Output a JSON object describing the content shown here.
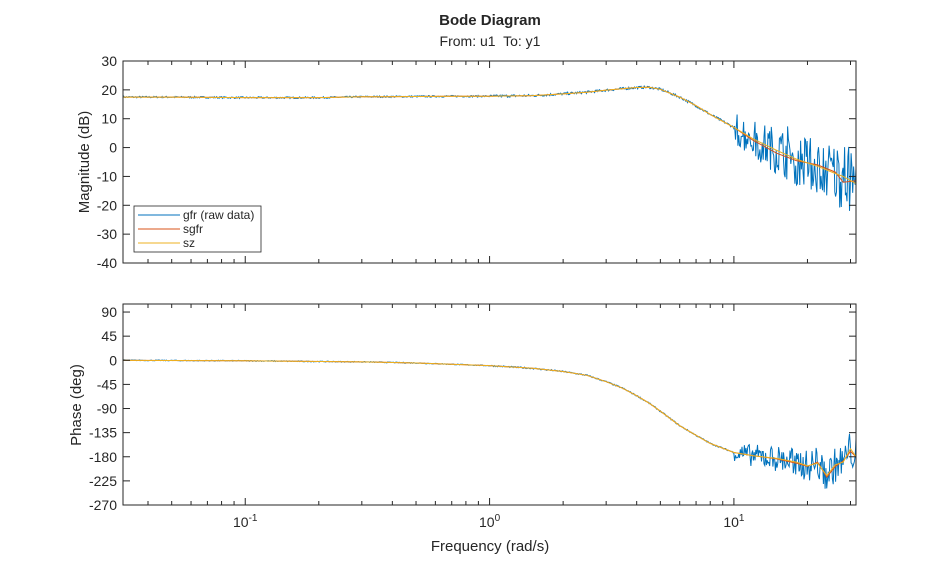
{
  "chart_data": {
    "type": "line",
    "title": "Bode Diagram",
    "subtitle": "From: u1  To: y1",
    "xlabel": "Frequency (rad/s)",
    "xscale": "log",
    "xlim": [
      0.0316,
      31.6
    ],
    "x_ticks": [
      {
        "base": "10",
        "exp": "-1",
        "value": 0.1
      },
      {
        "base": "10",
        "exp": "0",
        "value": 1
      },
      {
        "base": "10",
        "exp": "1",
        "value": 10
      }
    ],
    "legend": {
      "placement": "bottom-left of magnitude plot",
      "entries": [
        "gfr (raw data)",
        "sgfr",
        "sz"
      ]
    },
    "colors": {
      "gfr (raw data)": "#0072BD",
      "sgfr": "#D95319",
      "sz": "#EDB120"
    },
    "grid": false,
    "raw_data_noise": {
      "magnitude_db_above_10": 6,
      "phase_deg_above_10": 18
    },
    "magnitude": {
      "ylabel": "Magnitude (dB)",
      "ylim": [
        -40,
        30
      ],
      "yticks": [
        30,
        20,
        10,
        0,
        -10,
        -20,
        -30,
        -40
      ],
      "x": [
        0.0316,
        0.05,
        0.1,
        0.2,
        0.3,
        0.5,
        0.7,
        1,
        1.5,
        2,
        2.5,
        3,
        3.5,
        4,
        4.5,
        5,
        6,
        7,
        8,
        10,
        12,
        15,
        18,
        22,
        26,
        28,
        31.6
      ],
      "series": [
        {
          "name": "sz",
          "values": [
            17.5,
            17.5,
            17.3,
            17.3,
            17.6,
            17.7,
            17.8,
            17.8,
            18.0,
            18.6,
            19.2,
            19.9,
            20.4,
            20.8,
            20.9,
            20.2,
            17.5,
            14.5,
            11.5,
            7,
            3,
            -1,
            -4,
            -6.5,
            -9,
            -10,
            -12.5
          ]
        },
        {
          "name": "sgfr",
          "values": [
            17.5,
            17.5,
            17.3,
            17.3,
            17.6,
            17.7,
            17.8,
            17.8,
            18.0,
            18.6,
            19.2,
            19.9,
            20.4,
            20.8,
            20.9,
            20.2,
            17.5,
            14.5,
            11.5,
            7,
            2.5,
            -2,
            -4.5,
            -6,
            -8.5,
            -12,
            -11.5
          ]
        }
      ]
    },
    "phase": {
      "ylabel": "Phase (deg)",
      "ylim": [
        -270,
        105
      ],
      "yticks": [
        90,
        45,
        0,
        -45,
        -90,
        -135,
        -180,
        -225,
        -270
      ],
      "x": [
        0.0316,
        0.1,
        0.3,
        0.5,
        1,
        1.5,
        2,
        2.5,
        3,
        3.5,
        4,
        4.5,
        5,
        6,
        7,
        8,
        10,
        12,
        15,
        18,
        20,
        22,
        24,
        26,
        28,
        30,
        31.6
      ],
      "series": [
        {
          "name": "sz",
          "values": [
            0,
            -1,
            -3,
            -5,
            -10,
            -15,
            -21,
            -28,
            -40,
            -52,
            -66,
            -80,
            -95,
            -122,
            -140,
            -155,
            -172,
            -178,
            -183,
            -190,
            -197,
            -192,
            -215,
            -195,
            -190,
            -165,
            -180
          ]
        },
        {
          "name": "sgfr",
          "values": [
            0,
            -1,
            -3,
            -5,
            -10,
            -15,
            -21,
            -28,
            -40,
            -52,
            -66,
            -80,
            -95,
            -122,
            -140,
            -155,
            -172,
            -178,
            -184,
            -192,
            -198,
            -190,
            -218,
            -198,
            -188,
            -170,
            -180
          ]
        }
      ]
    }
  }
}
